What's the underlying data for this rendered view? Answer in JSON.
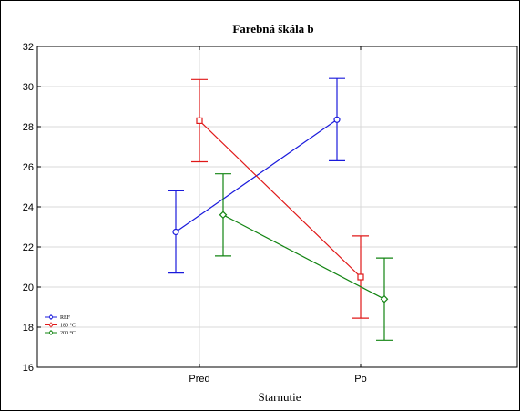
{
  "chart_data": {
    "type": "line",
    "title": "Farebná škála b",
    "xlabel": "Starnutie",
    "ylabel": "",
    "categories": [
      "Pred",
      "Po"
    ],
    "ylim": [
      16,
      32
    ],
    "yticks": [
      "16",
      "18",
      "20",
      "22",
      "24",
      "26",
      "28",
      "30",
      "32"
    ],
    "grid": true,
    "legend_position": "bottom-left",
    "series": [
      {
        "name": "REF",
        "color": "#1a1adc",
        "marker": "circle",
        "values": [
          22.75,
          28.35
        ],
        "err_low": [
          20.7,
          26.3
        ],
        "err_high": [
          24.8,
          30.4
        ]
      },
      {
        "name": "180 °C",
        "color": "#e01818",
        "marker": "square",
        "values": [
          28.3,
          20.5
        ],
        "err_low": [
          26.25,
          18.45
        ],
        "err_high": [
          30.35,
          22.55
        ]
      },
      {
        "name": "200 °C",
        "color": "#128412",
        "marker": "diamond",
        "values": [
          23.6,
          19.4
        ],
        "err_low": [
          21.55,
          17.35
        ],
        "err_high": [
          25.65,
          21.45
        ]
      }
    ]
  }
}
